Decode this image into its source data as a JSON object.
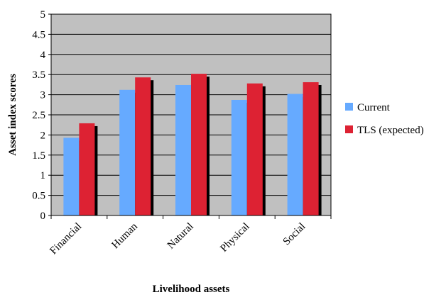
{
  "chart_data": {
    "type": "bar",
    "categories": [
      "Financial",
      "Human",
      "Natural",
      "Physical",
      "Social"
    ],
    "series": [
      {
        "name": "Current",
        "values": [
          1.93,
          3.12,
          3.24,
          2.87,
          3.02
        ],
        "color": "#66aaff"
      },
      {
        "name": "TLS (expected)",
        "values": [
          2.29,
          3.43,
          3.52,
          3.28,
          3.31
        ],
        "color": "#dd2233"
      }
    ],
    "xlabel": "Livelihood assets",
    "ylabel": "Asset index scores",
    "ylim": [
      0,
      5
    ],
    "yticks": [
      "0",
      "0.5",
      "1",
      "1.5",
      "2",
      "2.5",
      "3",
      "3.5",
      "4",
      "4.5",
      "5"
    ],
    "grid": true,
    "legend_position": "right",
    "plot_background": "#c0c0c0"
  }
}
